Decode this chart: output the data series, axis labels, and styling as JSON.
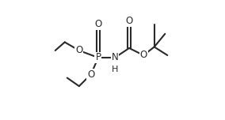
{
  "background_color": "#ffffff",
  "line_color": "#2a2a2a",
  "line_width": 1.5,
  "font_size": 8.5,
  "xlim": [
    0.0,
    1.0
  ],
  "ylim": [
    0.0,
    1.0
  ]
}
